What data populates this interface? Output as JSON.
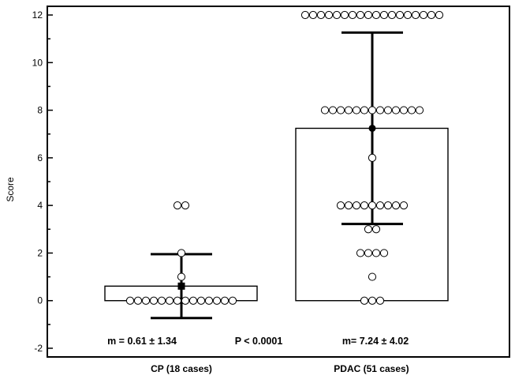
{
  "chart_data": {
    "type": "scatter",
    "subtype": "dot plot with mean bar and standard deviation error bars",
    "title": "",
    "ylabel": "Score",
    "xlabel": "",
    "ylim": [
      -2.6,
      12.4
    ],
    "yticks": [
      -2,
      0,
      2,
      4,
      6,
      8,
      10,
      12
    ],
    "y_minor_step": 1,
    "categories": [
      "CP (18 cases)",
      "PDAC (51 cases)"
    ],
    "grid": false,
    "legend": "none",
    "colors": {
      "ink": "#000000",
      "marker_fill": "#ffffff",
      "background": "#ffffff"
    },
    "groups": [
      {
        "name": "CP (18 cases)",
        "mean": 0.61,
        "sd": 1.34,
        "annotation": "m = 0.61 ± 1.34",
        "points": [
          {
            "y": 0,
            "count": 14
          },
          {
            "y": 1,
            "count": 1
          },
          {
            "y": 2,
            "count": 1
          },
          {
            "y": 4,
            "count": 2
          }
        ]
      },
      {
        "name": "PDAC (51 cases)",
        "mean": 7.24,
        "sd": 4.02,
        "annotation": "m= 7.24 ± 4.02",
        "points": [
          {
            "y": 0,
            "count": 3
          },
          {
            "y": 1,
            "count": 1
          },
          {
            "y": 2,
            "count": 4
          },
          {
            "y": 3,
            "count": 2
          },
          {
            "y": 4,
            "count": 9
          },
          {
            "y": 6,
            "count": 1
          },
          {
            "y": 8,
            "count": 13
          },
          {
            "y": 12,
            "count": 18
          }
        ]
      }
    ],
    "annotations": [
      "P < 0.0001"
    ]
  }
}
